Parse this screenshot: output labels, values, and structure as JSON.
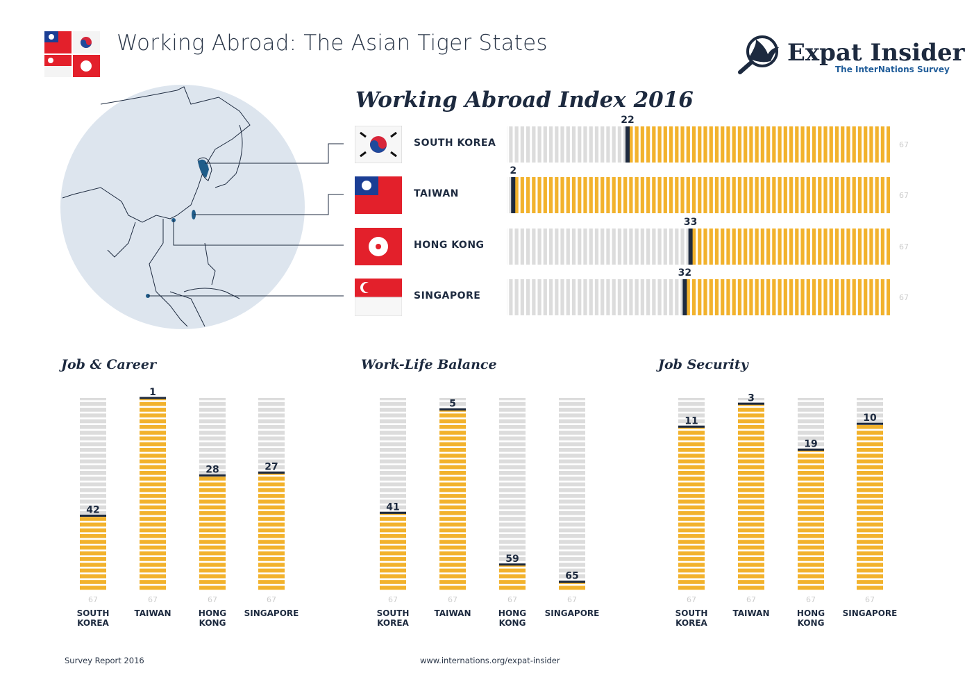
{
  "header": {
    "title": "Working Abroad: The Asian Tiger States",
    "logo": {
      "name": "Expat Insider",
      "subtitle": "The InterNations Survey"
    }
  },
  "colors": {
    "filled": "#f2b22c",
    "empty": "#dcdcdc",
    "marker": "#1d2a3f",
    "map_circle": "#dde5ee"
  },
  "footer": {
    "left": "Survey Report 2016",
    "center": "www.internations.org/expat-insider"
  },
  "chart_data": [
    {
      "type": "bar",
      "orientation": "horizontal",
      "title": "Working Abroad Index 2016",
      "categories": [
        "SOUTH KOREA",
        "TAIWAN",
        "HONG KONG",
        "SINGAPORE"
      ],
      "flags": [
        "south-korea-flag",
        "taiwan-flag",
        "hong-kong-flag",
        "singapore-flag"
      ],
      "values": [
        22,
        2,
        33,
        32
      ],
      "value_meaning": "rank",
      "max_rank": 67,
      "max_label": "67"
    },
    {
      "type": "bar",
      "orientation": "vertical",
      "title": "Job & Career",
      "categories": [
        "SOUTH KOREA",
        "TAIWAN",
        "HONG KONG",
        "SINGAPORE"
      ],
      "values": [
        42,
        1,
        28,
        27
      ],
      "max_rank": 67,
      "max_label": "67"
    },
    {
      "type": "bar",
      "orientation": "vertical",
      "title": "Work-Life Balance",
      "categories": [
        "SOUTH KOREA",
        "TAIWAN",
        "HONG KONG",
        "SINGAPORE"
      ],
      "values": [
        41,
        5,
        59,
        65
      ],
      "max_rank": 67,
      "max_label": "67"
    },
    {
      "type": "bar",
      "orientation": "vertical",
      "title": "Job Security",
      "categories": [
        "SOUTH KOREA",
        "TAIWAN",
        "HONG KONG",
        "SINGAPORE"
      ],
      "values": [
        11,
        3,
        19,
        10
      ],
      "max_rank": 67,
      "max_label": "67"
    }
  ]
}
